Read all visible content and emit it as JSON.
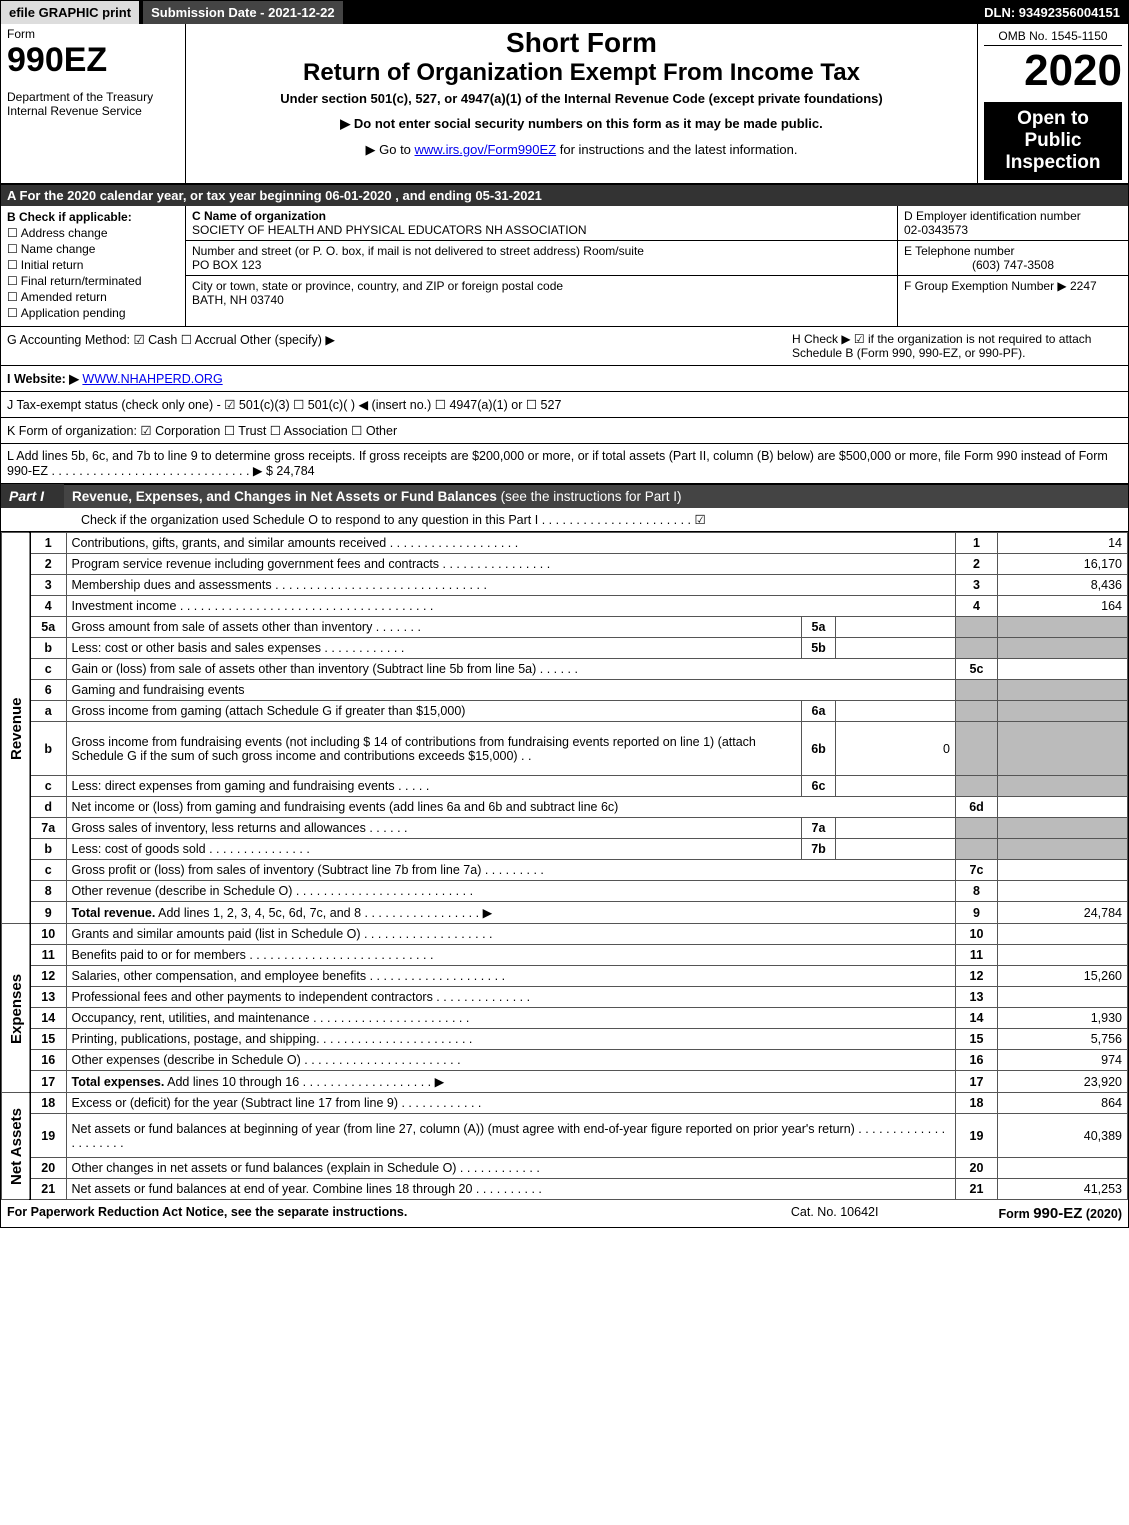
{
  "top": {
    "efile": "efile GRAPHIC print",
    "submission": "Submission Date - 2021-12-22",
    "dln": "DLN: 93492356004151"
  },
  "header": {
    "form_label": "Form",
    "form_no": "990EZ",
    "dept": "Department of the Treasury\nInternal Revenue Service",
    "short": "Short Form",
    "long": "Return of Organization Exempt From Income Tax",
    "sub": "Under section 501(c), 527, or 4947(a)(1) of the Internal Revenue Code (except private foundations)",
    "note1": "▶ Do not enter social security numbers on this form as it may be made public.",
    "note2_pre": "▶ Go to ",
    "note2_link": "www.irs.gov/Form990EZ",
    "note2_post": " for instructions and the latest information.",
    "omb": "OMB No. 1545-1150",
    "year": "2020",
    "inspect": "Open to Public Inspection"
  },
  "period": "A For the 2020 calendar year, or tax year beginning 06-01-2020 , and ending 05-31-2021",
  "sectionB": {
    "title": "B Check if applicable:",
    "items": [
      "Address change",
      "Name change",
      "Initial return",
      "Final return/terminated",
      "Amended return",
      "Application pending"
    ]
  },
  "sectionC": {
    "label": "C Name of organization",
    "name": "SOCIETY OF HEALTH AND PHYSICAL EDUCATORS NH ASSOCIATION",
    "addr_label": "Number and street (or P. O. box, if mail is not delivered to street address)        Room/suite",
    "addr": "PO BOX 123",
    "city_label": "City or town, state or province, country, and ZIP or foreign postal code",
    "city": "BATH, NH  03740"
  },
  "sectionD": {
    "label": "D Employer identification number",
    "val": "02-0343573"
  },
  "sectionE": {
    "label": "E Telephone number",
    "val": "(603) 747-3508"
  },
  "sectionF": {
    "label": "F Group Exemption Number  ▶",
    "val": "2247"
  },
  "sectionG": "G Accounting Method:   ☑ Cash  ☐ Accrual   Other (specify) ▶",
  "sectionH": "H  Check ▶ ☑ if the organization is not required to attach Schedule B (Form 990, 990-EZ, or 990-PF).",
  "sectionI_pre": "I Website: ▶",
  "sectionI_link": "WWW.NHAHPERD.ORG",
  "sectionJ": "J Tax-exempt status (check only one) - ☑ 501(c)(3) ☐ 501(c)(  ) ◀ (insert no.) ☐ 4947(a)(1) or ☐ 527",
  "sectionK": "K Form of organization:   ☑ Corporation  ☐ Trust  ☐ Association  ☐ Other",
  "sectionL": "L Add lines 5b, 6c, and 7b to line 9 to determine gross receipts. If gross receipts are $200,000 or more, or if total assets (Part II, column (B) below) are $500,000 or more, file Form 990 instead of Form 990-EZ  .  .  .  .  .  .  .  .  .  .  .  .  .  .  .  .  .  .  .  .  .  .  .  .  .  .  .  .  . ▶ $ 24,784",
  "part1": {
    "tag": "Part I",
    "title": "Revenue, Expenses, and Changes in Net Assets or Fund Balances",
    "title_note": "(see the instructions for Part I)",
    "sub": "Check if the organization used Schedule O to respond to any question in this Part I .  .  .  .  .  .  .  .  .  .  .  .  .  .  .  .  .  .  .  .  .  .  ☑"
  },
  "side_labels": {
    "rev": "Revenue",
    "exp": "Expenses",
    "na": "Net Assets"
  },
  "rows": [
    {
      "ln": "1",
      "desc": "Contributions, gifts, grants, and similar amounts received  .  .  .  .  .  .  .  .  .  .  .  .  .  .  .  .  .  .  .",
      "rln": "1",
      "val": "14"
    },
    {
      "ln": "2",
      "desc": "Program service revenue including government fees and contracts  .  .  .  .  .  .  .  .  .  .  .  .  .  .  .  .",
      "rln": "2",
      "val": "16,170"
    },
    {
      "ln": "3",
      "desc": "Membership dues and assessments  .  .  .  .  .  .  .  .  .  .  .  .  .  .  .  .  .  .  .  .  .  .  .  .  .  .  .  .  .  .  .",
      "rln": "3",
      "val": "8,436"
    },
    {
      "ln": "4",
      "desc": "Investment income  .  .  .  .  .  .  .  .  .  .  .  .  .  .  .  .  .  .  .  .  .  .  .  .  .  .  .  .  .  .  .  .  .  .  .  .  .",
      "rln": "4",
      "val": "164"
    },
    {
      "ln": "5a",
      "desc": "Gross amount from sale of assets other than inventory  .  .  .  .  .  .  .",
      "midln": "5a",
      "midval": "",
      "rln_shade": true
    },
    {
      "ln": "b",
      "desc": "Less: cost or other basis and sales expenses  .  .  .  .  .  .  .  .  .  .  .  .",
      "midln": "5b",
      "midval": "",
      "rln_shade": true
    },
    {
      "ln": "c",
      "desc": "Gain or (loss) from sale of assets other than inventory (Subtract line 5b from line 5a)  .  .  .  .  .  .",
      "rln": "5c",
      "val": ""
    },
    {
      "ln": "6",
      "desc": "Gaming and fundraising events",
      "rln_shade": true,
      "val_shade": true,
      "no_rln": true
    },
    {
      "ln": "a",
      "desc": "Gross income from gaming (attach Schedule G if greater than $15,000)",
      "midln": "6a",
      "midval": "",
      "rln_shade": true
    },
    {
      "ln": "b",
      "desc": "Gross income from fundraising events (not including $  14                     of contributions from fundraising events reported on line 1) (attach Schedule G if the sum of such gross income and contributions exceeds $15,000)    .  .",
      "midln": "6b",
      "midval": "0",
      "rln_shade": true,
      "tall": true
    },
    {
      "ln": "c",
      "desc": "Less: direct expenses from gaming and fundraising events   .  .  .  .  .",
      "midln": "6c",
      "midval": "",
      "rln_shade": true
    },
    {
      "ln": "d",
      "desc": "Net income or (loss) from gaming and fundraising events (add lines 6a and 6b and subtract line 6c)",
      "rln": "6d",
      "val": ""
    },
    {
      "ln": "7a",
      "desc": "Gross sales of inventory, less returns and allowances  .  .  .  .  .  .",
      "midln": "7a",
      "midval": "",
      "rln_shade": true
    },
    {
      "ln": "b",
      "desc": "Less: cost of goods sold        .  .  .  .  .  .  .  .  .  .  .  .  .  .  .",
      "midln": "7b",
      "midval": "",
      "rln_shade": true
    },
    {
      "ln": "c",
      "desc": "Gross profit or (loss) from sales of inventory (Subtract line 7b from line 7a)  .  .  .  .  .  .  .  .  .",
      "rln": "7c",
      "val": ""
    },
    {
      "ln": "8",
      "desc": "Other revenue (describe in Schedule O)  .  .  .  .  .  .  .  .  .  .  .  .  .  .  .  .  .  .  .  .  .  .  .  .  .  .",
      "rln": "8",
      "val": ""
    },
    {
      "ln": "9",
      "desc": "Total revenue. Add lines 1, 2, 3, 4, 5c, 6d, 7c, and 8   .  .  .  .  .  .  .  .  .  .  .  .  .  .  .  .  .  ▶",
      "rln": "9",
      "val": "24,784",
      "bold": true
    },
    {
      "section": "exp",
      "ln": "10",
      "desc": "Grants and similar amounts paid (list in Schedule O)  .  .  .  .  .  .  .  .  .  .  .  .  .  .  .  .  .  .  .",
      "rln": "10",
      "val": ""
    },
    {
      "ln": "11",
      "desc": "Benefits paid to or for members    .  .  .  .  .  .  .  .  .  .  .  .  .  .  .  .  .  .  .  .  .  .  .  .  .  .  .",
      "rln": "11",
      "val": ""
    },
    {
      "ln": "12",
      "desc": "Salaries, other compensation, and employee benefits  .  .  .  .  .  .  .  .  .  .  .  .  .  .  .  .  .  .  .  .",
      "rln": "12",
      "val": "15,260"
    },
    {
      "ln": "13",
      "desc": "Professional fees and other payments to independent contractors  .  .  .  .  .  .  .  .  .  .  .  .  .  .",
      "rln": "13",
      "val": ""
    },
    {
      "ln": "14",
      "desc": "Occupancy, rent, utilities, and maintenance  .  .  .  .  .  .  .  .  .  .  .  .  .  .  .  .  .  .  .  .  .  .  .",
      "rln": "14",
      "val": "1,930"
    },
    {
      "ln": "15",
      "desc": "Printing, publications, postage, and shipping.  .  .  .  .  .  .  .  .  .  .  .  .  .  .  .  .  .  .  .  .  .  .",
      "rln": "15",
      "val": "5,756"
    },
    {
      "ln": "16",
      "desc": "Other expenses (describe in Schedule O)    .  .  .  .  .  .  .  .  .  .  .  .  .  .  .  .  .  .  .  .  .  .  .",
      "rln": "16",
      "val": "974"
    },
    {
      "ln": "17",
      "desc": "Total expenses. Add lines 10 through 16    .  .  .  .  .  .  .  .  .  .  .  .  .  .  .  .  .  .  .  ▶",
      "rln": "17",
      "val": "23,920",
      "bold": true
    },
    {
      "section": "na",
      "ln": "18",
      "desc": "Excess or (deficit) for the year (Subtract line 17 from line 9)        .  .  .  .  .  .  .  .  .  .  .  .",
      "rln": "18",
      "val": "864"
    },
    {
      "ln": "19",
      "desc": "Net assets or fund balances at beginning of year (from line 27, column (A)) (must agree with end-of-year figure reported on prior year's return)  .  .  .  .  .  .  .  .  .  .  .  .  .  .  .  .  .  .  .  .  .",
      "rln": "19",
      "val": "40,389",
      "tall": true
    },
    {
      "ln": "20",
      "desc": "Other changes in net assets or fund balances (explain in Schedule O)  .  .  .  .  .  .  .  .  .  .  .  .",
      "rln": "20",
      "val": ""
    },
    {
      "ln": "21",
      "desc": "Net assets or fund balances at end of year. Combine lines 18 through 20  .  .  .  .  .  .  .  .  .  .",
      "rln": "21",
      "val": "41,253"
    }
  ],
  "footer": {
    "c1": "For Paperwork Reduction Act Notice, see the separate instructions.",
    "c2": "Cat. No. 10642I",
    "c3_pre": "Form ",
    "c3_bold": "990-EZ",
    "c3_post": " (2020)"
  },
  "colors": {
    "dark": "#000000",
    "grey": "#444444",
    "shade": "#bbbbbb",
    "link": "#0000ee"
  }
}
